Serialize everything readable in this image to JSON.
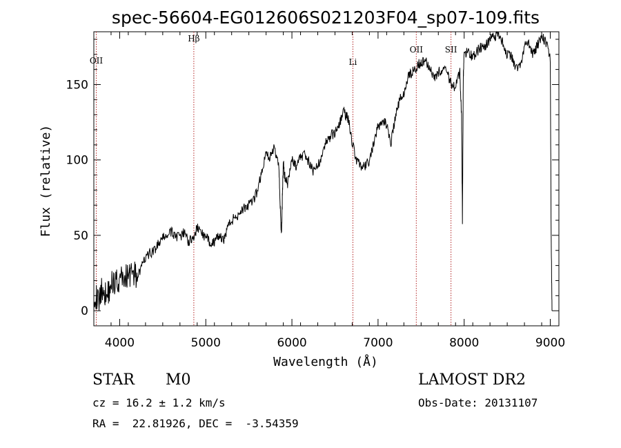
{
  "chart_data": {
    "type": "line",
    "title": "spec-56604-EG012606S021203F04_sp07-109.fits",
    "xlabel": "Wavelength (Å)",
    "ylabel": "Flux (relative)",
    "xlim": [
      3700,
      9100
    ],
    "ylim": [
      -10,
      185
    ],
    "xticks": [
      4000,
      5000,
      6000,
      7000,
      8000,
      9000
    ],
    "yticks": [
      0,
      50,
      100,
      150
    ],
    "series": [
      {
        "x": [
          3700,
          3750,
          3800,
          3850,
          3900,
          3950,
          4000,
          4050,
          4100,
          4150,
          4200,
          4250,
          4300,
          4350,
          4400,
          4450,
          4500,
          4550,
          4600,
          4650,
          4700,
          4750,
          4800,
          4850,
          4900,
          4950,
          5000,
          5050,
          5100,
          5150,
          5200,
          5250,
          5300,
          5350,
          5400,
          5450,
          5500,
          5550,
          5600,
          5650,
          5700,
          5750,
          5800,
          5850,
          5870,
          5880,
          5890,
          5900,
          5920,
          5950,
          6000,
          6050,
          6100,
          6150,
          6200,
          6250,
          6300,
          6350,
          6400,
          6450,
          6500,
          6550,
          6600,
          6650,
          6700,
          6750,
          6800,
          6850,
          6900,
          6950,
          7000,
          7050,
          7100,
          7150,
          7200,
          7250,
          7300,
          7350,
          7400,
          7450,
          7500,
          7550,
          7600,
          7650,
          7700,
          7750,
          7800,
          7850,
          7900,
          7950,
          7970,
          7980,
          7990,
          8000,
          8050,
          8100,
          8150,
          8200,
          8250,
          8300,
          8350,
          8400,
          8450,
          8500,
          8550,
          8600,
          8650,
          8700,
          8750,
          8800,
          8850,
          8900,
          8950,
          9000,
          9010,
          9020
        ],
        "y": [
          12,
          6,
          15,
          10,
          18,
          20,
          20,
          22,
          24,
          26,
          22,
          28,
          35,
          38,
          40,
          44,
          48,
          50,
          52,
          50,
          48,
          52,
          46,
          48,
          55,
          52,
          48,
          46,
          45,
          50,
          46,
          55,
          60,
          62,
          66,
          68,
          70,
          72,
          80,
          92,
          104,
          102,
          108,
          95,
          60,
          50,
          78,
          98,
          88,
          84,
          100,
          96,
          102,
          104,
          98,
          92,
          96,
          104,
          112,
          116,
          118,
          124,
          132,
          128,
          112,
          100,
          96,
          95,
          100,
          110,
          122,
          126,
          124,
          112,
          128,
          140,
          144,
          156,
          158,
          162,
          165,
          166,
          162,
          155,
          158,
          160,
          158,
          150,
          148,
          158,
          128,
          60,
          155,
          170,
          172,
          168,
          172,
          175,
          176,
          180,
          182,
          184,
          178,
          170,
          168,
          160,
          162,
          175,
          178,
          170,
          176,
          182,
          178,
          168,
          50,
          0
        ]
      }
    ],
    "spectral_lines": [
      {
        "label": "OII",
        "x": 3728
      },
      {
        "label": "Hβ",
        "x": 4861
      },
      {
        "label": "Li",
        "x": 6708
      },
      {
        "label": "OII",
        "x": 7444
      },
      {
        "label": "SII",
        "x": 7847
      }
    ]
  },
  "info": {
    "object_class": "STAR",
    "subclass": "M0",
    "survey": "LAMOST DR2",
    "cz": "cz = 16.2 ± 1.2 km/s",
    "obs_date": "Obs-Date: 20131107",
    "coords": "RA =  22.81926, DEC =  -3.54359"
  }
}
